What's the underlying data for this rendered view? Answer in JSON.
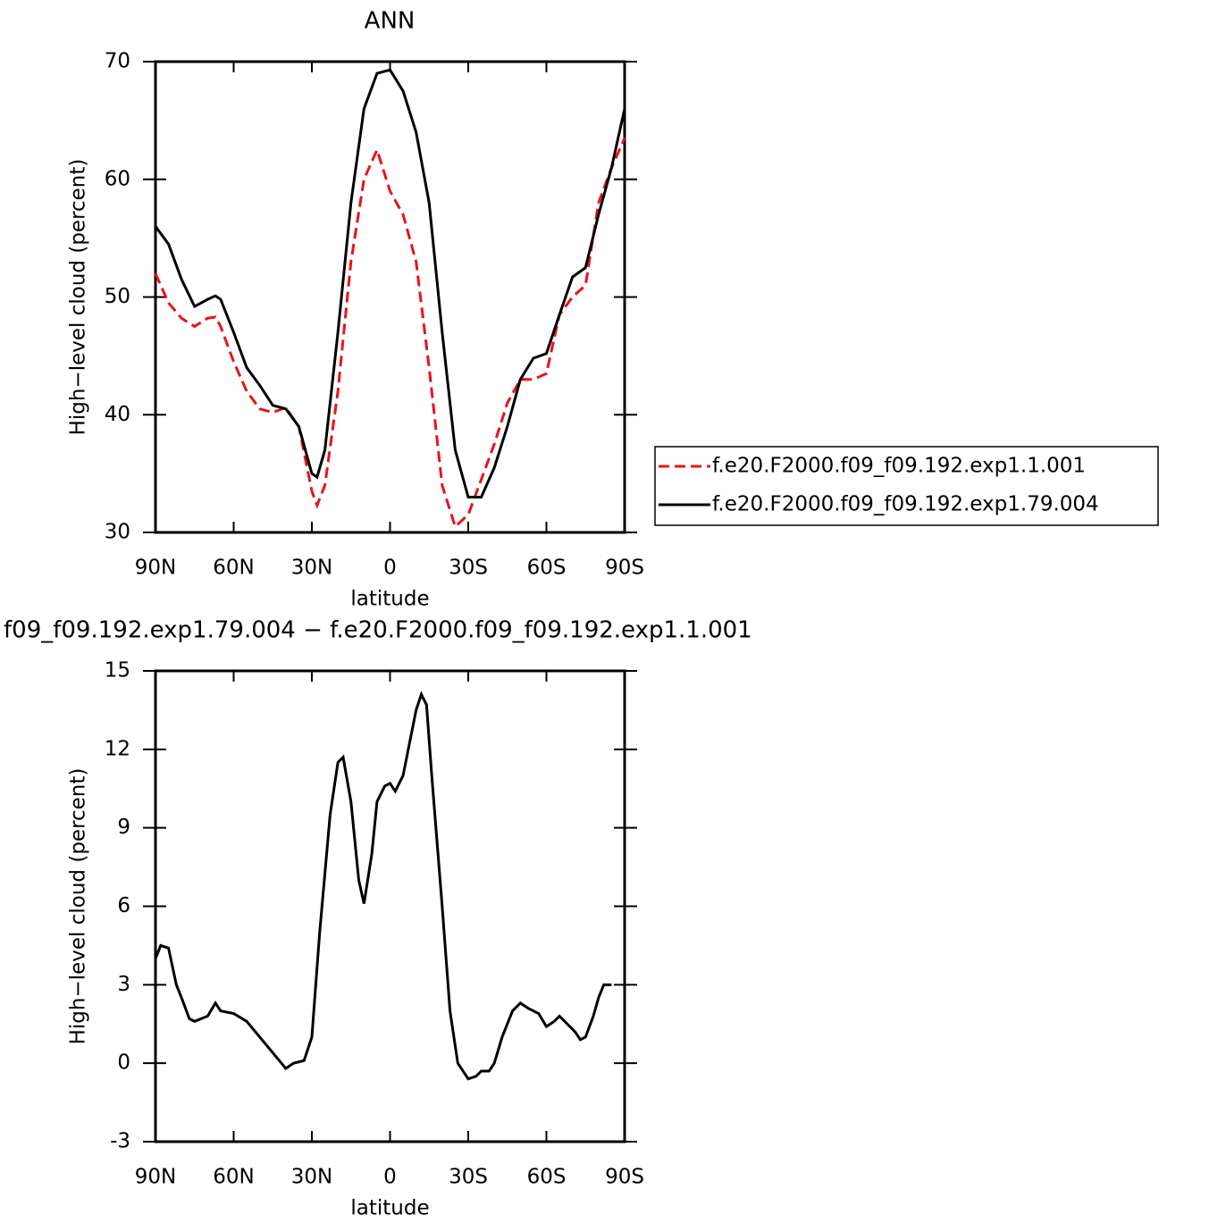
{
  "chart_data": [
    {
      "type": "line",
      "title": "ANN",
      "xlabel": "latitude",
      "ylabel": "High−level cloud (percent)",
      "x": [
        90,
        85,
        80,
        75,
        70,
        67,
        65,
        60,
        55,
        50,
        45,
        40,
        35,
        30,
        28,
        25,
        20,
        15,
        10,
        5,
        0,
        -5,
        -10,
        -15,
        -20,
        -25,
        -30,
        -35,
        -40,
        -45,
        -50,
        -55,
        -60,
        -65,
        -70,
        -75,
        -80,
        -85,
        -90
      ],
      "series": [
        {
          "name": "f.e20.F2000.f09_f09.192.exp1.1.001",
          "color": "#e8141a",
          "line_style": "dashed",
          "values": [
            52,
            49.5,
            48.2,
            47.5,
            48.2,
            48.3,
            47.5,
            44.5,
            42,
            40.5,
            40.2,
            40.6,
            39,
            33.5,
            32.3,
            34,
            42,
            53,
            60,
            62.5,
            59,
            57,
            53,
            44,
            34,
            30.5,
            31.5,
            34.5,
            37.5,
            41,
            43,
            43,
            43.5,
            48.5,
            50,
            51,
            58,
            61,
            63.5
          ]
        },
        {
          "name": "f.e20.F2000.f09_f09.192.exp1.79.004",
          "color": "#000000",
          "line_style": "solid",
          "values": [
            56,
            54.5,
            51.5,
            49.2,
            49.8,
            50.1,
            49.8,
            47,
            44,
            42.5,
            40.8,
            40.5,
            39,
            35,
            34.7,
            37,
            47,
            58,
            66,
            69,
            69.3,
            67.5,
            64,
            58,
            47,
            37,
            33,
            33,
            35.5,
            39,
            43,
            44.8,
            45.2,
            48.5,
            51.7,
            52.5,
            57,
            61,
            66
          ]
        }
      ],
      "xlim": [
        90,
        -90
      ],
      "xticks": [
        {
          "value": 90,
          "label": "90N"
        },
        {
          "value": 60,
          "label": "60N"
        },
        {
          "value": 30,
          "label": "30N"
        },
        0,
        {
          "value": -30,
          "label": "30S"
        },
        {
          "value": -60,
          "label": "60S"
        },
        {
          "value": -90,
          "label": "90S"
        }
      ],
      "ylim": [
        30,
        70
      ],
      "yticks": [
        30,
        40,
        50,
        60,
        70
      ],
      "legend": "right"
    },
    {
      "type": "line",
      "title": "f09_f09.192.exp1.79.004 − f.e20.F2000.f09_f09.192.exp1.1.001",
      "xlabel": "latitude",
      "ylabel": "High−level cloud (percent)",
      "x": [
        90,
        88,
        85,
        82,
        80,
        77,
        75,
        70,
        67,
        65,
        60,
        55,
        50,
        45,
        40,
        37,
        33,
        30,
        27,
        23,
        20,
        18,
        15,
        12,
        10,
        7,
        5,
        2,
        0,
        -2,
        -5,
        -8,
        -10,
        -12,
        -14,
        -16,
        -20,
        -23,
        -26,
        -30,
        -33,
        -35,
        -38,
        -40,
        -43,
        -47,
        -50,
        -53,
        -57,
        -60,
        -63,
        -65,
        -68,
        -71,
        -73,
        -75,
        -78,
        -80,
        -82,
        -85
      ],
      "values": [
        4,
        4.5,
        4.4,
        3,
        2.5,
        1.7,
        1.6,
        1.8,
        2.3,
        2,
        1.9,
        1.6,
        1,
        0.4,
        -0.2,
        0,
        0.1,
        1,
        5,
        9.5,
        11.5,
        11.7,
        10,
        7,
        6.1,
        8,
        10,
        10.6,
        10.7,
        10.4,
        11,
        12.5,
        13.5,
        14.1,
        13.7,
        11,
        6,
        2,
        0,
        -0.6,
        -0.5,
        -0.3,
        -0.3,
        0,
        1,
        2,
        2.3,
        2.1,
        1.9,
        1.4,
        1.6,
        1.8,
        1.5,
        1.2,
        0.9,
        1,
        1.8,
        2.5,
        3,
        3
      ],
      "color": "#000000",
      "xlim": [
        90,
        -90
      ],
      "xticks": [
        {
          "value": 90,
          "label": "90N"
        },
        {
          "value": 60,
          "label": "60N"
        },
        {
          "value": 30,
          "label": "30N"
        },
        0,
        {
          "value": -30,
          "label": "30S"
        },
        {
          "value": -60,
          "label": "60S"
        },
        {
          "value": -90,
          "label": "90S"
        }
      ],
      "ylim": [
        -3,
        15
      ],
      "yticks": [
        -3,
        0,
        3,
        6,
        9,
        12,
        15
      ]
    }
  ]
}
